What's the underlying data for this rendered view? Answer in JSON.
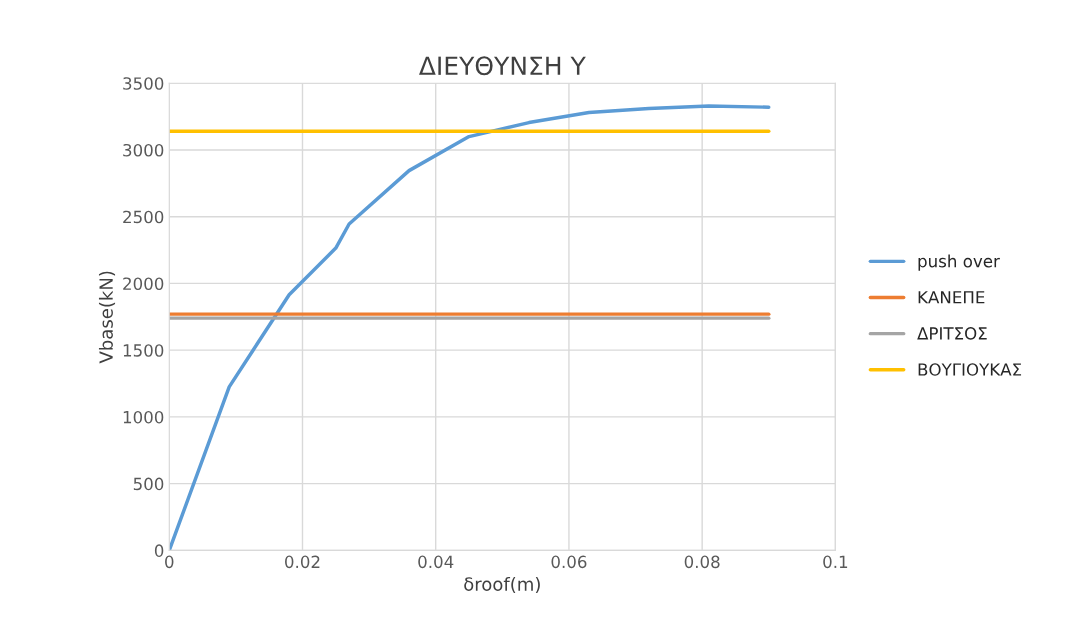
{
  "chart_data": {
    "type": "line",
    "title": "ΔΙΕΥΘΥΝΣΗ Υ",
    "xlabel": "δroof(m)",
    "ylabel": "Vbase(kN)",
    "xlim": [
      0,
      0.1
    ],
    "xticks": [
      0,
      0.02,
      0.04,
      0.06,
      0.08,
      0.1
    ],
    "ylim": [
      0,
      3500
    ],
    "yticks": [
      0,
      500,
      1000,
      1500,
      2000,
      2500,
      3000,
      3500
    ],
    "grid": true,
    "legend": "right",
    "marker": "none",
    "line_style": "solid",
    "series": [
      {
        "name": "push over",
        "color": "#5b9bd5",
        "x": [
          0,
          0.009,
          0.018,
          0.025,
          0.027,
          0.036,
          0.045,
          0.054,
          0.063,
          0.072,
          0.081,
          0.09
        ],
        "values": [
          0,
          1225,
          1915,
          2265,
          2445,
          2845,
          3100,
          3205,
          3280,
          3310,
          3330,
          3320
        ]
      },
      {
        "name": "ΚΑΝΕΠΕ",
        "color": "#ed7d31",
        "x": [
          0,
          0.09
        ],
        "values": [
          1770,
          1770
        ]
      },
      {
        "name": "ΔΡΙΤΣΟΣ",
        "color": "#a5a5a5",
        "x": [
          0,
          0.09
        ],
        "values": [
          1740,
          1740
        ]
      },
      {
        "name": "ΒΟΥΓΙΟΥΚΑΣ",
        "color": "#ffc000",
        "x": [
          0,
          0.09
        ],
        "values": [
          3140,
          3140
        ]
      }
    ]
  }
}
